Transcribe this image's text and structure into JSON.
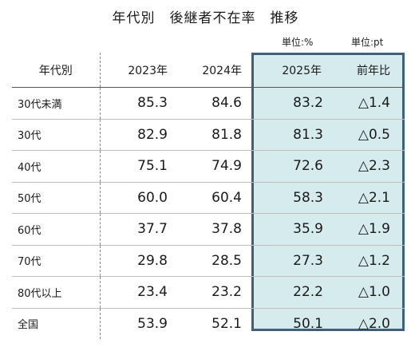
{
  "title": "年代別　後継者不在率　推移",
  "units": {
    "percent": "単位:%",
    "point": "単位:pt"
  },
  "table": {
    "headers": [
      "年代別",
      "2023年",
      "2024年",
      "2025年",
      "前年比"
    ],
    "rows": [
      {
        "age": "30代未満",
        "y2023": "85.3",
        "y2024": "84.6",
        "y2025": "83.2",
        "yoy": "△1.4"
      },
      {
        "age": "30代",
        "y2023": "82.9",
        "y2024": "81.8",
        "y2025": "81.3",
        "yoy": "△0.5"
      },
      {
        "age": "40代",
        "y2023": "75.1",
        "y2024": "74.9",
        "y2025": "72.6",
        "yoy": "△2.3"
      },
      {
        "age": "50代",
        "y2023": "60.0",
        "y2024": "60.4",
        "y2025": "58.3",
        "yoy": "△2.1"
      },
      {
        "age": "60代",
        "y2023": "37.7",
        "y2024": "37.8",
        "y2025": "35.9",
        "yoy": "△1.9"
      },
      {
        "age": "70代",
        "y2023": "29.8",
        "y2024": "28.5",
        "y2025": "27.3",
        "yoy": "△1.2"
      },
      {
        "age": "80代以上",
        "y2023": "23.4",
        "y2024": "23.2",
        "y2025": "22.2",
        "yoy": "△1.0"
      },
      {
        "age": "全国",
        "y2023": "53.9",
        "y2024": "52.1",
        "y2025": "50.1",
        "yoy": "△2.0"
      }
    ]
  },
  "colors": {
    "highlight_fill": "#d6ebee",
    "highlight_border": "#3f5f7a"
  }
}
